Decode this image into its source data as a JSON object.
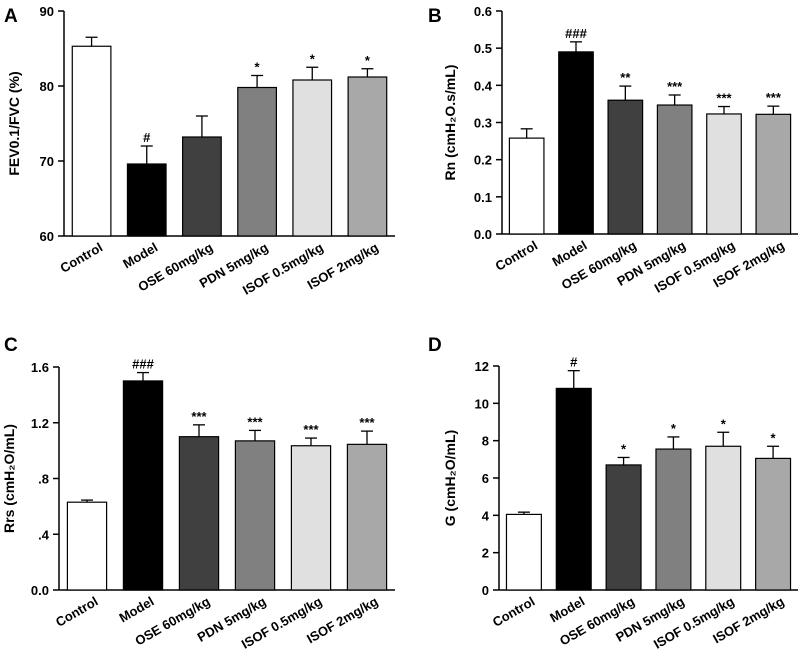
{
  "figure": {
    "categories": [
      "Control",
      "Model",
      "OSE 60mg/kg",
      "PDN 5mg/kg",
      "ISOF 0.5mg/kg",
      "ISOF 2mg/kg"
    ],
    "bar_colors": [
      "#ffffff",
      "#000000",
      "#404040",
      "#808080",
      "#e0e0e0",
      "#a8a8a8"
    ]
  },
  "chart_data": [
    {
      "panel": "A",
      "type": "bar",
      "ylabel": "FEV0.1/FVC (%)",
      "ylim": [
        60,
        90
      ],
      "yticks": [
        60,
        70,
        80,
        90
      ],
      "ytick_labels": [
        "60",
        "70",
        "80",
        "90"
      ],
      "categories": [
        "Control",
        "Model",
        "OSE 60mg/kg",
        "PDN 5mg/kg",
        "ISOF 0.5mg/kg",
        "ISOF 2mg/kg"
      ],
      "values": [
        85.3,
        69.6,
        73.2,
        79.8,
        80.8,
        81.2
      ],
      "errors": [
        1.2,
        2.4,
        2.8,
        1.6,
        1.7,
        1.1
      ],
      "significance": [
        "",
        "#",
        "",
        "*",
        "*",
        "*"
      ]
    },
    {
      "panel": "B",
      "type": "bar",
      "ylabel": "Rn (cmH₂O.s/mL)",
      "ylim": [
        0,
        0.6
      ],
      "yticks": [
        0,
        0.1,
        0.2,
        0.3,
        0.4,
        0.5,
        0.6
      ],
      "ytick_labels": [
        "0.0",
        "0.1",
        "0.2",
        "0.3",
        "0.4",
        "0.5",
        "0.6"
      ],
      "categories": [
        "Control",
        "Model",
        "OSE 60mg/kg",
        "PDN 5mg/kg",
        "ISOF 0.5mg/kg",
        "ISOF 2mg/kg"
      ],
      "values": [
        0.258,
        0.49,
        0.36,
        0.347,
        0.323,
        0.322
      ],
      "errors": [
        0.025,
        0.027,
        0.038,
        0.027,
        0.02,
        0.022
      ],
      "significance": [
        "",
        "###",
        "**",
        "***",
        "***",
        "***"
      ]
    },
    {
      "panel": "C",
      "type": "bar",
      "ylabel": "Rrs (cmH₂O/mL)",
      "ylim": [
        0,
        1.6
      ],
      "yticks": [
        0,
        0.4,
        0.8,
        1.2,
        1.6
      ],
      "ytick_labels": [
        "0.0",
        ".4",
        ".8",
        "1.2",
        "1.6"
      ],
      "categories": [
        "Control",
        "Model",
        "OSE 60mg/kg",
        "PDN 5mg/kg",
        "ISOF 0.5mg/kg",
        "ISOF 2mg/kg"
      ],
      "values": [
        0.63,
        1.5,
        1.1,
        1.07,
        1.035,
        1.045
      ],
      "errors": [
        0.015,
        0.06,
        0.085,
        0.075,
        0.055,
        0.095
      ],
      "significance": [
        "",
        "###",
        "***",
        "***",
        "***",
        "***"
      ]
    },
    {
      "panel": "D",
      "type": "bar",
      "ylabel": "G (cmH₂O/mL)",
      "ylim": [
        0,
        12
      ],
      "yticks": [
        0,
        2,
        4,
        6,
        8,
        10,
        12
      ],
      "ytick_labels": [
        "0",
        "2",
        "4",
        "6",
        "8",
        "10",
        "12"
      ],
      "categories": [
        "Control",
        "Model",
        "OSE 60mg/kg",
        "PDN 5mg/kg",
        "ISOF 0.5mg/kg",
        "ISOF 2mg/kg"
      ],
      "values": [
        4.05,
        10.8,
        6.7,
        7.55,
        7.7,
        7.05
      ],
      "errors": [
        0.12,
        0.95,
        0.4,
        0.65,
        0.75,
        0.65
      ],
      "significance": [
        "",
        "#",
        "*",
        "*",
        "*",
        "*"
      ]
    }
  ]
}
